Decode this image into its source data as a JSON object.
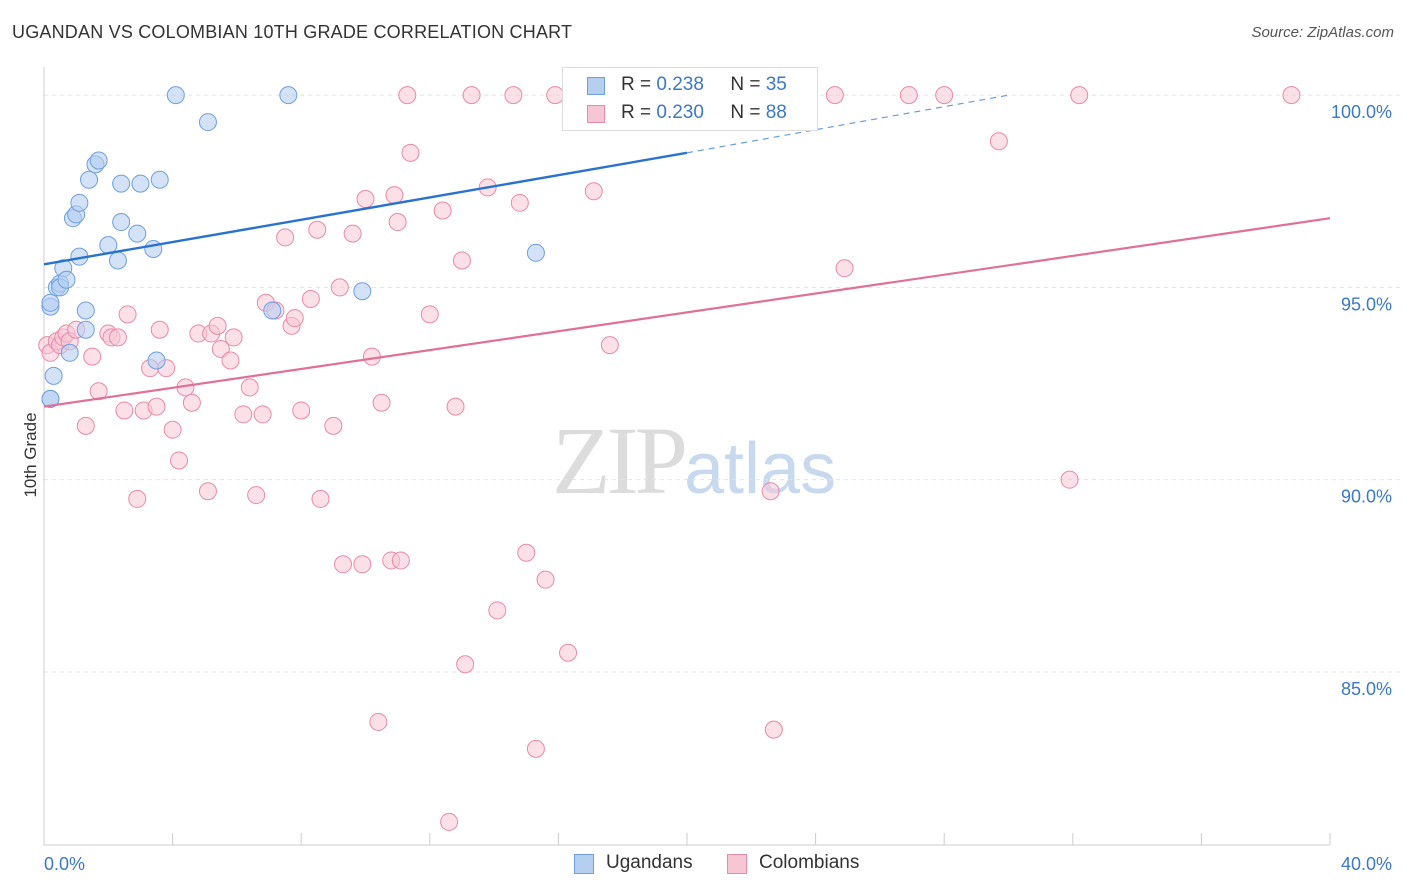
{
  "title": "UGANDAN VS COLOMBIAN 10TH GRADE CORRELATION CHART",
  "source": "Source: ZipAtlas.com",
  "watermark": {
    "zip": "ZIP",
    "atlas": "atlas"
  },
  "colors": {
    "ugandans": "#6f9fde",
    "ugandans_fill": "#b6cff1",
    "colombians": "#e88aa8",
    "colombians_fill": "#f7c6d5",
    "blue_line": "#2a72d0",
    "pink_line": "#e07098",
    "tick_text": "#3b78c6"
  },
  "legend": {
    "rows": [
      {
        "r_label": "R =",
        "r_value": "0.238",
        "n_label": "N =",
        "n_value": "35"
      },
      {
        "r_label": "R =",
        "r_value": "0.230",
        "n_label": "N =",
        "n_value": "88"
      }
    ]
  },
  "bottom_legend": [
    "Ugandans",
    "Colombians"
  ],
  "chart_data": {
    "type": "scatter",
    "title": "UGANDAN VS COLOMBIAN 10TH GRADE CORRELATION CHART",
    "xlabel": "",
    "ylabel": "10th Grade",
    "xlim": [
      0,
      40
    ],
    "ylim": [
      80.5,
      101.2
    ],
    "x_tick_labels": [
      "0.0%",
      "40.0%"
    ],
    "y_ticks": [
      85,
      90,
      95,
      100
    ],
    "y_tick_labels": [
      "85.0%",
      "90.0%",
      "95.0%",
      "100.0%"
    ],
    "grid": true,
    "legend_position": "top-center",
    "series": [
      {
        "name": "Ugandans",
        "r": 0.238,
        "n": 35,
        "trend": {
          "x0": 0,
          "y0": 95.6,
          "x1": 20,
          "y1": 98.5,
          "dash_x1": 30,
          "dash_y1": 100.0
        },
        "points": [
          [
            0.2,
            92.1
          ],
          [
            0.2,
            94.5
          ],
          [
            0.2,
            94.6
          ],
          [
            0.3,
            92.7
          ],
          [
            0.4,
            95.0
          ],
          [
            0.5,
            95.1
          ],
          [
            0.5,
            95.0
          ],
          [
            0.6,
            95.5
          ],
          [
            0.7,
            95.2
          ],
          [
            0.8,
            93.3
          ],
          [
            0.9,
            96.8
          ],
          [
            1.0,
            96.9
          ],
          [
            1.1,
            97.2
          ],
          [
            1.1,
            95.8
          ],
          [
            1.3,
            94.4
          ],
          [
            1.3,
            93.9
          ],
          [
            1.4,
            97.8
          ],
          [
            1.6,
            98.2
          ],
          [
            1.7,
            98.3
          ],
          [
            2.0,
            96.1
          ],
          [
            2.3,
            95.7
          ],
          [
            2.4,
            96.7
          ],
          [
            2.4,
            97.7
          ],
          [
            2.9,
            96.4
          ],
          [
            3.0,
            97.7
          ],
          [
            3.4,
            96.0
          ],
          [
            3.5,
            93.1
          ],
          [
            3.6,
            97.8
          ],
          [
            4.1,
            100.0
          ],
          [
            5.1,
            99.3
          ],
          [
            7.1,
            94.4
          ],
          [
            7.6,
            100.0
          ],
          [
            9.9,
            94.9
          ],
          [
            15.3,
            95.9
          ],
          [
            0.2,
            92.1
          ]
        ]
      },
      {
        "name": "Colombians",
        "r": 0.23,
        "n": 88,
        "trend": {
          "x0": 0,
          "y0": 91.9,
          "x1": 40,
          "y1": 96.8
        },
        "points": [
          [
            0.1,
            93.5
          ],
          [
            0.2,
            93.3
          ],
          [
            0.4,
            93.6
          ],
          [
            0.5,
            93.5
          ],
          [
            0.6,
            93.7
          ],
          [
            0.7,
            93.8
          ],
          [
            0.8,
            93.6
          ],
          [
            1.0,
            93.9
          ],
          [
            1.3,
            91.4
          ],
          [
            1.5,
            93.2
          ],
          [
            1.7,
            92.3
          ],
          [
            2.0,
            93.8
          ],
          [
            2.1,
            93.7
          ],
          [
            2.3,
            93.7
          ],
          [
            2.5,
            91.8
          ],
          [
            2.6,
            94.3
          ],
          [
            2.9,
            89.5
          ],
          [
            3.1,
            91.8
          ],
          [
            3.3,
            92.9
          ],
          [
            3.5,
            91.9
          ],
          [
            3.6,
            93.9
          ],
          [
            3.8,
            92.9
          ],
          [
            4.0,
            91.3
          ],
          [
            4.2,
            90.5
          ],
          [
            4.4,
            92.4
          ],
          [
            4.6,
            92.0
          ],
          [
            4.8,
            93.8
          ],
          [
            5.1,
            89.7
          ],
          [
            5.2,
            93.8
          ],
          [
            5.4,
            94.0
          ],
          [
            5.5,
            93.4
          ],
          [
            5.8,
            93.1
          ],
          [
            5.9,
            93.7
          ],
          [
            6.2,
            91.7
          ],
          [
            6.4,
            92.4
          ],
          [
            6.6,
            89.6
          ],
          [
            6.8,
            91.7
          ],
          [
            6.9,
            94.6
          ],
          [
            7.2,
            94.4
          ],
          [
            7.5,
            96.3
          ],
          [
            7.7,
            94.0
          ],
          [
            7.8,
            94.2
          ],
          [
            8.0,
            91.8
          ],
          [
            8.3,
            94.7
          ],
          [
            8.5,
            96.5
          ],
          [
            8.6,
            89.5
          ],
          [
            9.0,
            91.4
          ],
          [
            9.2,
            95.0
          ],
          [
            9.3,
            87.8
          ],
          [
            9.6,
            96.4
          ],
          [
            9.9,
            87.8
          ],
          [
            10.0,
            97.3
          ],
          [
            10.2,
            93.2
          ],
          [
            10.4,
            83.7
          ],
          [
            10.5,
            92.0
          ],
          [
            10.8,
            87.9
          ],
          [
            10.9,
            97.4
          ],
          [
            11.0,
            96.7
          ],
          [
            11.1,
            87.9
          ],
          [
            11.3,
            100.0
          ],
          [
            11.4,
            98.5
          ],
          [
            12.0,
            94.3
          ],
          [
            12.4,
            97.0
          ],
          [
            12.6,
            81.1
          ],
          [
            12.8,
            91.9
          ],
          [
            13.0,
            95.7
          ],
          [
            13.1,
            85.2
          ],
          [
            13.3,
            100.0
          ],
          [
            13.8,
            97.6
          ],
          [
            14.1,
            86.6
          ],
          [
            14.6,
            100.0
          ],
          [
            14.8,
            97.2
          ],
          [
            15.0,
            88.1
          ],
          [
            15.3,
            83.0
          ],
          [
            15.6,
            87.4
          ],
          [
            15.9,
            100.0
          ],
          [
            16.3,
            85.5
          ],
          [
            17.1,
            97.5
          ],
          [
            17.6,
            93.5
          ],
          [
            20.0,
            100.0
          ],
          [
            22.6,
            89.7
          ],
          [
            22.7,
            83.5
          ],
          [
            24.6,
            100.0
          ],
          [
            24.9,
            95.5
          ],
          [
            26.9,
            100.0
          ],
          [
            28.0,
            100.0
          ],
          [
            29.7,
            98.8
          ],
          [
            31.9,
            90.0
          ]
        ],
        "extra_points": [
          [
            32.2,
            100.0
          ],
          [
            38.8,
            100.0
          ]
        ]
      }
    ]
  }
}
